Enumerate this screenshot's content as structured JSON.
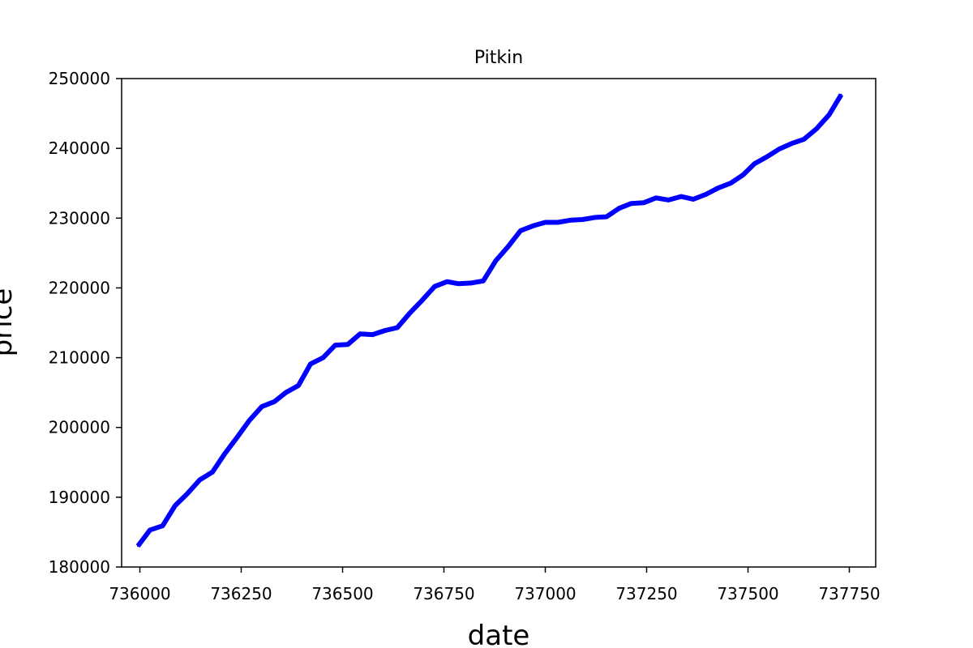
{
  "chart_data": {
    "type": "line",
    "title": "Pitkin",
    "xlabel": "date",
    "ylabel": "price",
    "xlim": [
      735955,
      737815
    ],
    "ylim": [
      180000,
      250000
    ],
    "xticks": [
      736000,
      736250,
      736500,
      736750,
      737000,
      737250,
      737500,
      737750
    ],
    "yticks": [
      180000,
      190000,
      200000,
      210000,
      220000,
      230000,
      240000,
      250000
    ],
    "grid": false,
    "series": [
      {
        "color": "#0000ff",
        "x": [
          735995,
          736025,
          736056,
          736087,
          736117,
          736148,
          736179,
          736209,
          736240,
          736270,
          736301,
          736332,
          736360,
          736391,
          736421,
          736452,
          736482,
          736513,
          736543,
          736574,
          736605,
          736635,
          736666,
          736696,
          736727,
          736758,
          736786,
          736817,
          736847,
          736878,
          736908,
          736939,
          736970,
          737000,
          737031,
          737061,
          737092,
          737123,
          737151,
          737182,
          737212,
          737243,
          737273,
          737304,
          737335,
          737365,
          737396,
          737426,
          737457,
          737488,
          737516,
          737547,
          737577,
          737608,
          737638,
          737669,
          737700,
          737730
        ],
        "y": [
          183000,
          185300,
          185900,
          188800,
          190500,
          192500,
          193600,
          196200,
          198600,
          201000,
          203000,
          203700,
          205000,
          206000,
          209100,
          210000,
          211800,
          211900,
          213400,
          213300,
          213900,
          214300,
          216400,
          218200,
          220200,
          220900,
          220600,
          220700,
          221000,
          223900,
          225900,
          228200,
          228900,
          229400,
          229400,
          229700,
          229800,
          230100,
          230200,
          231400,
          232100,
          232200,
          232900,
          232600,
          233100,
          232700,
          233400,
          234300,
          235000,
          236200,
          237800,
          238800,
          239900,
          240700,
          241300,
          242800,
          244800,
          247700
        ]
      }
    ]
  }
}
